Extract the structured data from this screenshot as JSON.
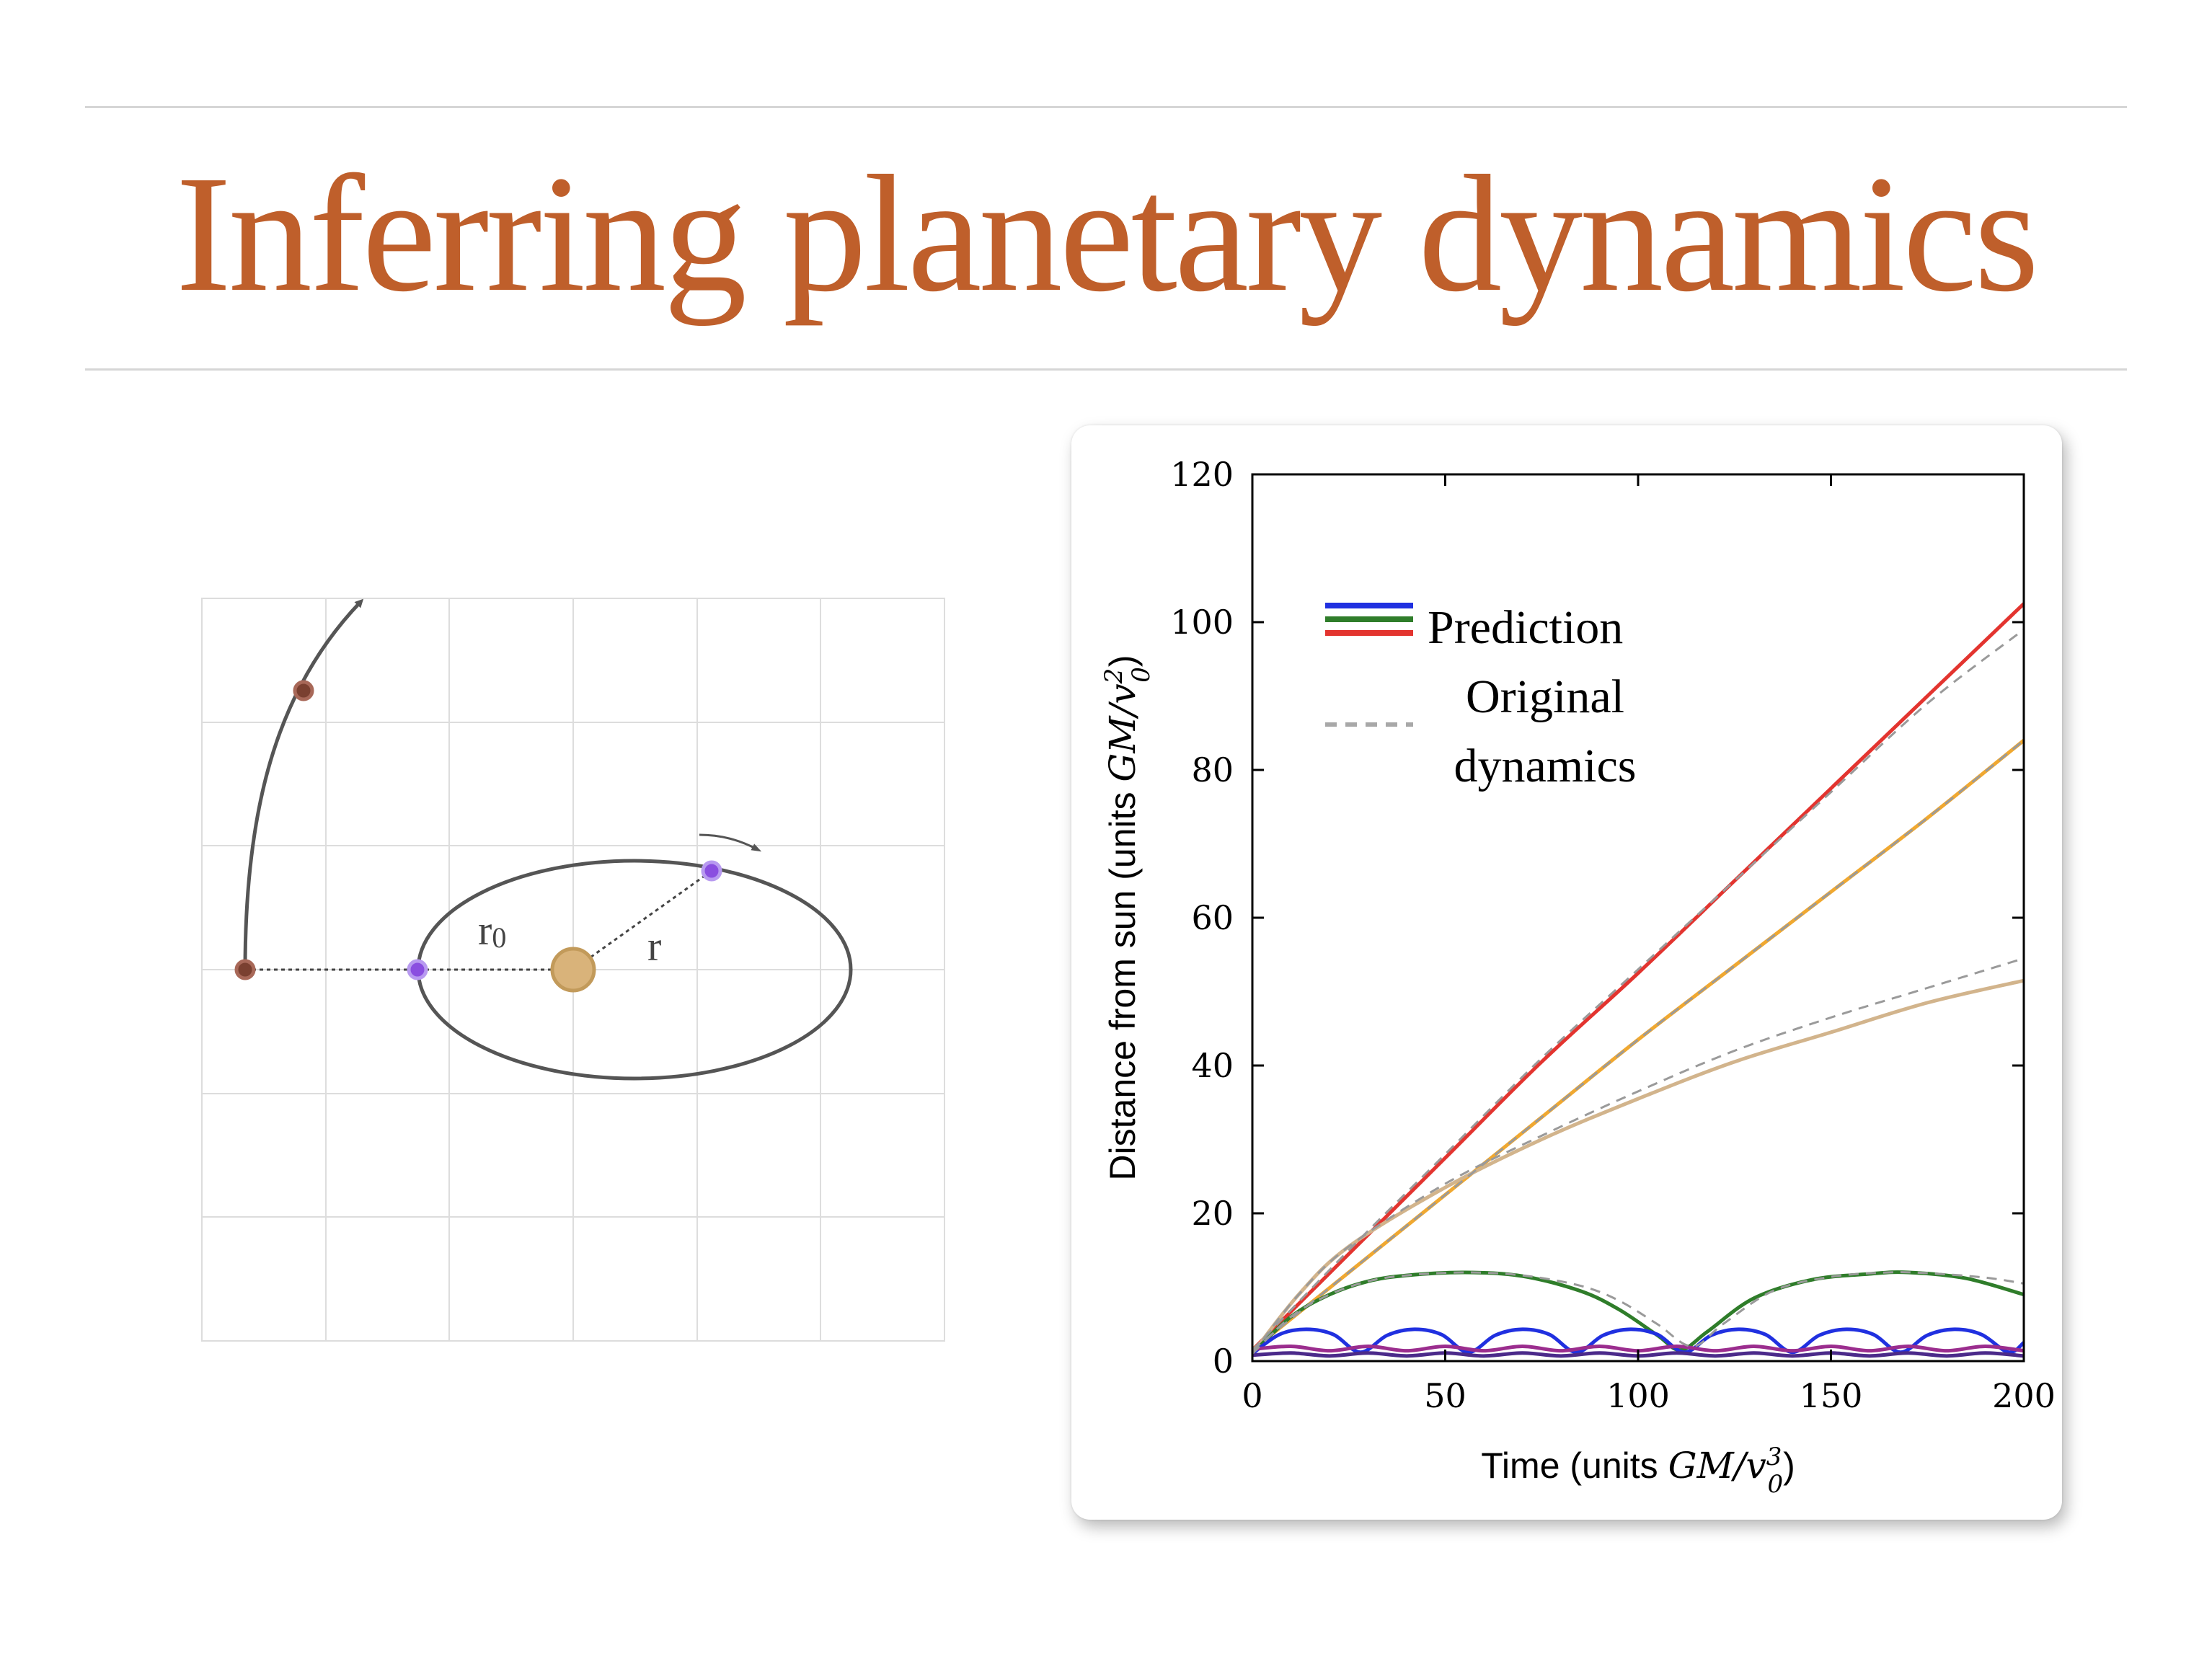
{
  "slide": {
    "title": "Inferring planetary dynamics"
  },
  "diagram": {
    "label_r0": "r",
    "label_r0_sub": "0",
    "label_r": "r",
    "colors": {
      "grid": "#dddddd",
      "orbit": "#555555",
      "sun": "#d9b37a",
      "planet_bound": "#8a4ee0",
      "planet_escape": "#7a4030"
    }
  },
  "chart": {
    "legend": {
      "prediction": "Prediction",
      "original_line1": "Original",
      "original_line2": "dynamics"
    },
    "ylabel_prefix": "Distance from sun (units ",
    "ylabel_math": "GM/v",
    "ylabel_sup": "2",
    "ylabel_sub": "0",
    "ylabel_suffix": ")",
    "xlabel_prefix": "Time (units ",
    "xlabel_math": "GM/v",
    "xlabel_sup": "3",
    "xlabel_sub": "0",
    "xlabel_suffix": ")"
  },
  "chart_data": {
    "type": "line",
    "title": "",
    "xlabel": "Time (units GM/v0^3)",
    "ylabel": "Distance from sun (units GM/v0^2)",
    "xlim": [
      0,
      200
    ],
    "ylim": [
      0,
      120
    ],
    "xticks": [
      0,
      50,
      100,
      150,
      200
    ],
    "yticks": [
      0,
      20,
      40,
      60,
      80,
      100,
      120
    ],
    "grid": false,
    "legend_position": "top-left",
    "series": [
      {
        "color": "#e3342f",
        "style": "solid",
        "x": [
          0,
          25,
          50,
          75,
          100,
          125,
          150,
          175,
          200
        ],
        "y": [
          1.5,
          14.5,
          27.5,
          40.5,
          52.5,
          65,
          77.5,
          90,
          102.5
        ]
      },
      {
        "color": "#9a9a9a",
        "style": "dashed",
        "x": [
          0,
          25,
          50,
          75,
          100,
          125,
          150,
          175,
          200
        ],
        "y": [
          1.5,
          15,
          28,
          41,
          53,
          65,
          77,
          89,
          99
        ]
      },
      {
        "color": "#f0a830",
        "style": "solid",
        "x": [
          0,
          25,
          50,
          75,
          100,
          125,
          150,
          175,
          200
        ],
        "y": [
          1.5,
          12,
          22.5,
          33,
          43.5,
          53.5,
          63.5,
          73.5,
          84
        ]
      },
      {
        "color": "#9a9a9a",
        "style": "dashed",
        "x": [
          0,
          25,
          50,
          75,
          100,
          125,
          150,
          175,
          200
        ],
        "y": [
          1.5,
          12,
          22.5,
          33,
          43.5,
          53.5,
          63.5,
          73.5,
          84
        ]
      },
      {
        "color": "#d2b48c",
        "style": "solid",
        "x": [
          0,
          12,
          25,
          50,
          75,
          100,
          125,
          150,
          175,
          200
        ],
        "y": [
          1,
          9,
          15.5,
          23.5,
          30,
          35.5,
          40.5,
          44.5,
          48.5,
          51.5
        ]
      },
      {
        "color": "#9a9a9a",
        "style": "dashed",
        "x": [
          0,
          12,
          25,
          50,
          75,
          100,
          125,
          150,
          175,
          200
        ],
        "y": [
          1,
          9,
          15.5,
          24,
          30.5,
          36.5,
          42,
          46.5,
          50.5,
          54.5
        ]
      },
      {
        "color": "#2f7d2a",
        "style": "solid",
        "x": [
          0,
          10,
          20,
          30,
          40,
          55,
          70,
          85,
          95,
          105,
          111,
          118,
          130,
          145,
          160,
          170,
          185,
          200
        ],
        "y": [
          1,
          6,
          9,
          10.8,
          11.6,
          12,
          11.5,
          9.5,
          7,
          3.5,
          1.5,
          4,
          8.5,
          11,
          11.8,
          12,
          11.2,
          9
        ]
      },
      {
        "color": "#9a9a9a",
        "style": "dashed",
        "x": [
          0,
          10,
          20,
          30,
          40,
          55,
          70,
          85,
          95,
          105,
          114,
          122,
          135,
          150,
          165,
          175,
          190,
          200
        ],
        "y": [
          1,
          6,
          9,
          10.8,
          11.6,
          12,
          11.6,
          10.2,
          8.2,
          5,
          2,
          5,
          9.5,
          11.4,
          12,
          11.9,
          11.3,
          10.5
        ]
      },
      {
        "color": "#2030e0",
        "style": "solid",
        "x": [
          0,
          7,
          14,
          21,
          28,
          35,
          42,
          49,
          56,
          63,
          70,
          77,
          84,
          91,
          98,
          105,
          112,
          119,
          126,
          133,
          140,
          147,
          154,
          161,
          168,
          175,
          182,
          189,
          196,
          200
        ],
        "y": [
          1,
          3.6,
          4.3,
          3.6,
          1.2,
          3.5,
          4.3,
          3.6,
          1.2,
          3.5,
          4.3,
          3.6,
          1.2,
          3.5,
          4.3,
          3.6,
          1.2,
          3.5,
          4.3,
          3.6,
          1.2,
          3.5,
          4.3,
          3.6,
          1.2,
          3.5,
          4.3,
          3.6,
          1.2,
          2.5
        ]
      },
      {
        "color": "#9b2d8e",
        "style": "solid",
        "x": [
          0,
          10,
          20,
          30,
          40,
          50,
          60,
          70,
          80,
          90,
          100,
          110,
          120,
          130,
          140,
          150,
          160,
          170,
          180,
          190,
          200
        ],
        "y": [
          1.6,
          2.0,
          1.4,
          2.0,
          1.4,
          2.0,
          1.4,
          2.0,
          1.4,
          2.0,
          1.4,
          2.0,
          1.4,
          2.0,
          1.4,
          2.0,
          1.4,
          2.0,
          1.4,
          2.0,
          1.4
        ]
      },
      {
        "color": "#4b2a8a",
        "style": "solid",
        "x": [
          0,
          10,
          20,
          30,
          40,
          50,
          60,
          70,
          80,
          90,
          100,
          110,
          120,
          130,
          140,
          150,
          160,
          170,
          180,
          190,
          200
        ],
        "y": [
          0.8,
          1.1,
          0.7,
          1.1,
          0.7,
          1.1,
          0.7,
          1.1,
          0.7,
          1.1,
          0.7,
          1.1,
          0.7,
          1.1,
          0.7,
          1.1,
          0.7,
          1.1,
          0.7,
          1.1,
          0.7
        ]
      }
    ],
    "legend_colors": [
      "#2030e0",
      "#2f7d2a",
      "#e3342f"
    ],
    "legend_dash_color": "#a8a8a8"
  }
}
